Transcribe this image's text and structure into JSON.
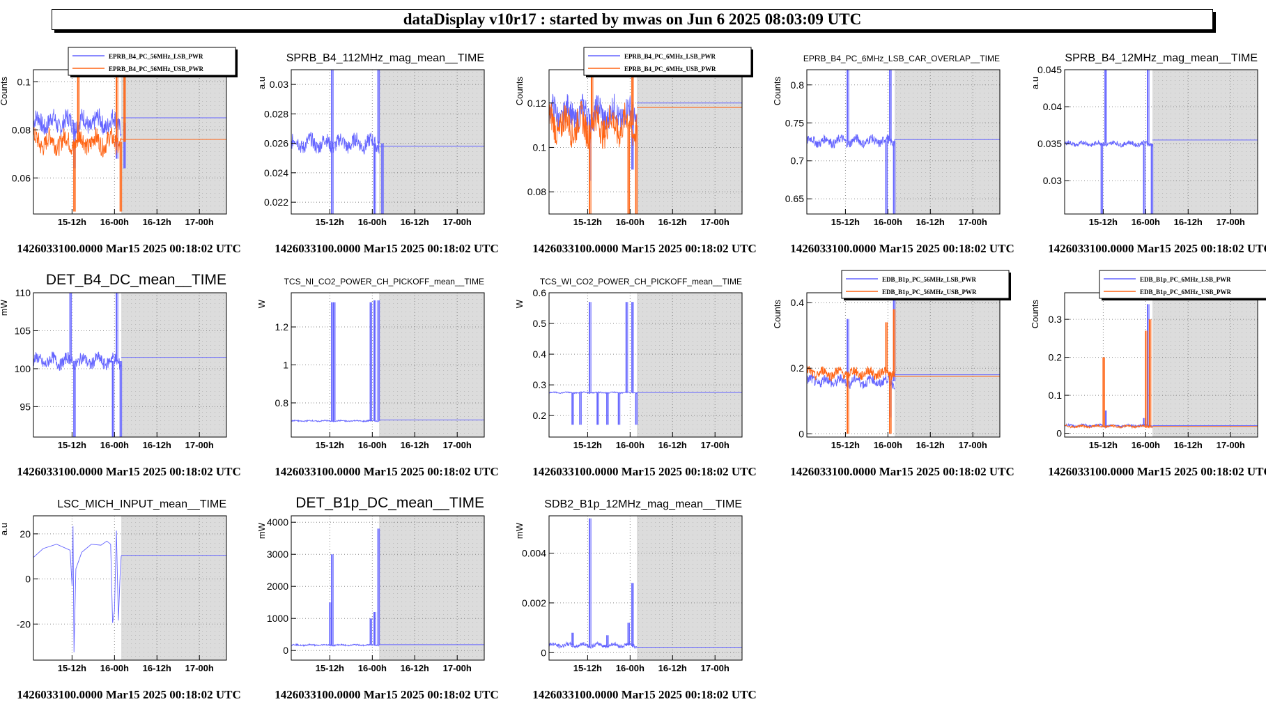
{
  "header": {
    "title": "dataDisplay v10r17 : started by mwas on Jun  6 2025 08:03:09 UTC"
  },
  "colors": {
    "blue": "#6464ff",
    "orange": "#ff6414",
    "shade": "#dcdcdc"
  },
  "footer_text": "1426033100.0000 Mar15 2025 00:18:02 UTC",
  "chart_data": [
    {
      "type": "line",
      "title": "",
      "ylabel": "Counts",
      "ylim": [
        0.045,
        0.105
      ],
      "yticks": [
        "0.06",
        "0.08",
        "0.1"
      ],
      "ytick_values": [
        0.06,
        0.08,
        0.1
      ],
      "xticks": [
        "15-12h",
        "16-00h",
        "16-12h",
        "17-00h"
      ],
      "grid": true,
      "legend_position": "top",
      "series": [
        {
          "name": "EPRB_B4_PC_56MHz_LSB_PWR",
          "color": "blue",
          "level": 0.083,
          "noise": 0.004,
          "spikes": [
            [
              0.21,
              0.064
            ],
            [
              0.43,
              0.068
            ],
            [
              0.47,
              0.064
            ]
          ],
          "flat": 0.085
        },
        {
          "name": "EPRB_B4_PC_56MHz_USB_PWR",
          "color": "orange",
          "level": 0.075,
          "noise": 0.004,
          "spikes": [
            [
              0.21,
              0.046
            ],
            [
              0.23,
              0.104
            ],
            [
              0.43,
              0.104
            ],
            [
              0.45,
              0.046
            ],
            [
              0.47,
              0.104
            ]
          ],
          "flat": 0.076
        }
      ]
    },
    {
      "type": "line",
      "title": "SPRB_B4_112MHz_mag_mean__TIME",
      "ylabel": "a.u",
      "ylim": [
        0.0212,
        0.031
      ],
      "yticks": [
        "0.022",
        "0.024",
        "0.026",
        "0.028",
        "0.03"
      ],
      "ytick_values": [
        0.022,
        0.024,
        0.026,
        0.028,
        0.03
      ],
      "xticks": [
        "15-12h",
        "16-00h",
        "16-12h",
        "17-00h"
      ],
      "grid": true,
      "series": [
        {
          "name": "",
          "color": "blue",
          "level": 0.026,
          "noise": 0.0005,
          "spikes": [
            [
              0.21,
              0.0212
            ],
            [
              0.21,
              0.031
            ],
            [
              0.43,
              0.0212
            ],
            [
              0.45,
              0.031
            ],
            [
              0.47,
              0.0212
            ]
          ],
          "flat": 0.0258
        }
      ]
    },
    {
      "type": "line",
      "title": "",
      "ylabel": "Counts",
      "ylim": [
        0.07,
        0.135
      ],
      "yticks": [
        "0.08",
        "0.1",
        "0.12"
      ],
      "ytick_values": [
        0.08,
        0.1,
        0.12
      ],
      "xticks": [
        "15-12h",
        "16-00h",
        "16-12h",
        "17-00h"
      ],
      "grid": true,
      "legend_position": "top",
      "series": [
        {
          "name": "EPRB_B4_PC_6MHz_LSB_PWR",
          "color": "blue",
          "level": 0.115,
          "noise": 0.006,
          "spikes": [
            [
              0.21,
              0.085
            ],
            [
              0.43,
              0.09
            ]
          ],
          "flat": 0.12
        },
        {
          "name": "EPRB_B4_PC_6MHz_USB_PWR",
          "color": "orange",
          "level": 0.11,
          "noise": 0.007,
          "spikes": [
            [
              0.21,
              0.07
            ],
            [
              0.22,
              0.135
            ],
            [
              0.41,
              0.07
            ],
            [
              0.43,
              0.135
            ],
            [
              0.45,
              0.07
            ]
          ],
          "flat": 0.118
        }
      ]
    },
    {
      "type": "line",
      "title": "EPRB_B4_PC_6MHz_LSB_CAR_OVERLAP__TIME",
      "ylabel": "Counts",
      "ylim": [
        0.63,
        0.82
      ],
      "yticks": [
        "0.65",
        "0.7",
        "0.75",
        "0.8"
      ],
      "ytick_values": [
        0.65,
        0.7,
        0.75,
        0.8
      ],
      "xticks": [
        "15-12h",
        "16-00h",
        "16-12h",
        "17-00h"
      ],
      "grid": true,
      "series": [
        {
          "name": "",
          "color": "blue",
          "level": 0.726,
          "noise": 0.006,
          "spikes": [
            [
              0.21,
              0.82
            ],
            [
              0.41,
              0.63
            ],
            [
              0.43,
              0.82
            ],
            [
              0.45,
              0.63
            ]
          ],
          "flat": 0.728
        }
      ]
    },
    {
      "type": "line",
      "title": "SPRB_B4_12MHz_mag_mean__TIME",
      "ylabel": "a.u",
      "ylim": [
        0.0255,
        0.045
      ],
      "yticks": [
        "0.03",
        "0.035",
        "0.04",
        "0.045"
      ],
      "ytick_values": [
        0.03,
        0.035,
        0.04,
        0.045
      ],
      "xticks": [
        "15-12h",
        "16-00h",
        "16-12h",
        "17-00h"
      ],
      "grid": true,
      "series": [
        {
          "name": "",
          "color": "blue",
          "level": 0.035,
          "noise": 0.0003,
          "spikes": [
            [
              0.19,
              0.0255
            ],
            [
              0.21,
              0.045
            ],
            [
              0.41,
              0.0255
            ],
            [
              0.43,
              0.045
            ],
            [
              0.45,
              0.0255
            ]
          ],
          "flat": 0.0355
        }
      ]
    },
    {
      "type": "line",
      "title": "DET_B4_DC_mean__TIME",
      "ylabel": "mW",
      "ylim": [
        91,
        110
      ],
      "yticks": [
        "95",
        "100",
        "105",
        "110"
      ],
      "ytick_values": [
        95,
        100,
        105,
        110
      ],
      "xticks": [
        "15-12h",
        "16-00h",
        "16-12h",
        "17-00h"
      ],
      "grid": true,
      "series": [
        {
          "name": "",
          "color": "blue",
          "level": 101,
          "noise": 0.8,
          "spikes": [
            [
              0.19,
              110
            ],
            [
              0.21,
              91
            ],
            [
              0.41,
              91
            ],
            [
              0.43,
              110
            ],
            [
              0.45,
              91
            ]
          ],
          "flat": 101.5
        }
      ]
    },
    {
      "type": "line",
      "title": "TCS_NI_CO2_POWER_CH_PICKOFF_mean__TIME",
      "ylabel": "W",
      "ylim": [
        0.62,
        1.38
      ],
      "yticks": [
        "0.8",
        "1",
        "1.2"
      ],
      "ytick_values": [
        0.8,
        1,
        1.2
      ],
      "xticks": [
        "15-12h",
        "16-00h",
        "16-12h",
        "17-00h"
      ],
      "grid": true,
      "series": [
        {
          "name": "",
          "color": "blue",
          "level": 0.705,
          "noise": 0.003,
          "spikes": [
            [
              0.21,
              1.33
            ],
            [
              0.22,
              1.33
            ],
            [
              0.41,
              1.33
            ],
            [
              0.43,
              1.34
            ],
            [
              0.45,
              1.34
            ]
          ],
          "flat": 0.71
        }
      ]
    },
    {
      "type": "line",
      "title": "TCS_WI_CO2_POWER_CH_PICKOFF_mean__TIME",
      "ylabel": "W",
      "ylim": [
        0.13,
        0.6
      ],
      "yticks": [
        "0.2",
        "0.3",
        "0.4",
        "0.5",
        "0.6"
      ],
      "ytick_values": [
        0.2,
        0.3,
        0.4,
        0.5,
        0.6
      ],
      "xticks": [
        "15-12h",
        "16-00h",
        "16-12h",
        "17-00h"
      ],
      "grid": true,
      "series": [
        {
          "name": "",
          "color": "blue",
          "level": 0.275,
          "noise": 0.002,
          "spikes": [
            [
              0.12,
              0.17
            ],
            [
              0.16,
              0.17
            ],
            [
              0.21,
              0.57
            ],
            [
              0.25,
              0.17
            ],
            [
              0.3,
              0.17
            ],
            [
              0.36,
              0.17
            ],
            [
              0.4,
              0.57
            ],
            [
              0.43,
              0.57
            ],
            [
              0.45,
              0.17
            ]
          ],
          "flat": 0.275
        }
      ]
    },
    {
      "type": "line",
      "title": "",
      "ylabel": "Counts",
      "ylim": [
        -0.01,
        0.43
      ],
      "yticks": [
        "0",
        "0.2",
        "0.4"
      ],
      "ytick_values": [
        0,
        0.2,
        0.4
      ],
      "xticks": [
        "15-12h",
        "16-00h",
        "16-12h",
        "17-00h"
      ],
      "grid": true,
      "legend_position": "top",
      "series": [
        {
          "name": "EDB_B1p_PC_56MHz_LSB_PWR",
          "color": "blue",
          "level": 0.16,
          "noise": 0.015,
          "spikes": [
            [
              0.21,
              0.35
            ],
            [
              0.43,
              0.05
            ],
            [
              0.45,
              0.42
            ]
          ],
          "flat": 0.18
        },
        {
          "name": "EDB_B1p_PC_56MHz_USB_PWR",
          "color": "orange",
          "level": 0.185,
          "noise": 0.015,
          "spikes": [
            [
              0.21,
              0.0
            ],
            [
              0.41,
              0.34
            ],
            [
              0.43,
              0.0
            ],
            [
              0.45,
              0.38
            ]
          ],
          "flat": 0.175
        }
      ]
    },
    {
      "type": "line",
      "title": "",
      "ylabel": "Counts",
      "ylim": [
        -0.01,
        0.37
      ],
      "yticks": [
        "0",
        "0.1",
        "0.2",
        "0.3"
      ],
      "ytick_values": [
        0,
        0.1,
        0.2,
        0.3
      ],
      "xticks": [
        "15-12h",
        "16-00h",
        "16-12h",
        "17-00h"
      ],
      "grid": true,
      "legend_position": "top",
      "series": [
        {
          "name": "EDB_B1p_PC_6MHz_LSB_PWR",
          "color": "blue",
          "level": 0.02,
          "noise": 0.003,
          "spikes": [
            [
              0.21,
              0.06
            ],
            [
              0.41,
              0.04
            ],
            [
              0.43,
              0.34
            ]
          ],
          "flat": 0.02
        },
        {
          "name": "EDB_B1p_PC_6MHz_USB_PWR",
          "color": "orange",
          "level": 0.018,
          "noise": 0.003,
          "spikes": [
            [
              0.2,
              0.2
            ],
            [
              0.42,
              0.27
            ],
            [
              0.44,
              0.3
            ]
          ],
          "flat": 0.018
        }
      ]
    },
    {
      "type": "line",
      "title": "LSC_MICH_INPUT_mean__TIME",
      "ylabel": "a.u",
      "ylim": [
        -36,
        28
      ],
      "yticks": [
        "-20",
        "0",
        "20"
      ],
      "ytick_values": [
        -20,
        0,
        20
      ],
      "xticks": [
        "15-12h",
        "16-00h",
        "16-12h",
        "17-00h"
      ],
      "grid": true,
      "series": [
        {
          "name": "",
          "color": "blue",
          "shape": "mich",
          "flat": 10.5
        }
      ]
    },
    {
      "type": "line",
      "title": "DET_B1p_DC_mean__TIME",
      "ylabel": "mW",
      "ylim": [
        -300,
        4200
      ],
      "yticks": [
        "0",
        "1000",
        "2000",
        "3000",
        "4000"
      ],
      "ytick_values": [
        0,
        1000,
        2000,
        3000,
        4000
      ],
      "xticks": [
        "15-12h",
        "16-00h",
        "16-12h",
        "17-00h"
      ],
      "grid": true,
      "series": [
        {
          "name": "",
          "color": "blue",
          "level": 170,
          "noise": 20,
          "spikes": [
            [
              0.2,
              1500
            ],
            [
              0.21,
              3000
            ],
            [
              0.41,
              1000
            ],
            [
              0.43,
              1200
            ],
            [
              0.45,
              3800
            ]
          ],
          "flat": 180
        }
      ]
    },
    {
      "type": "line",
      "title": "SDB2_B1p_12MHz_mag_mean__TIME",
      "ylabel": "mW",
      "ylim": [
        -0.0003,
        0.0055
      ],
      "yticks": [
        "0",
        "0.002",
        "0.004"
      ],
      "ytick_values": [
        0,
        0.002,
        0.004
      ],
      "xticks": [
        "15-12h",
        "16-00h",
        "16-12h",
        "17-00h"
      ],
      "grid": true,
      "series": [
        {
          "name": "",
          "color": "blue",
          "level": 0.0003,
          "noise": 8e-05,
          "spikes": [
            [
              0.12,
              0.0008
            ],
            [
              0.21,
              0.0054
            ],
            [
              0.3,
              0.0007
            ],
            [
              0.41,
              0.0012
            ],
            [
              0.43,
              0.0028
            ]
          ],
          "flat": 0.00022
        }
      ]
    }
  ]
}
